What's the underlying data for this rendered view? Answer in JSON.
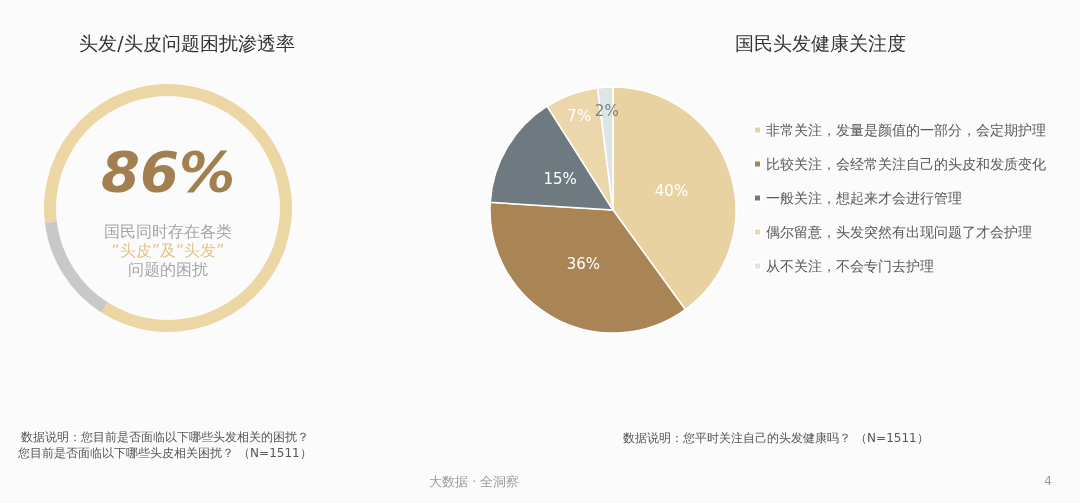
{
  "chart_data": [
    {
      "type": "donut",
      "title": "头发/头皮问题困扰渗透率",
      "categories": [
        null,
        null
      ],
      "values": [
        86,
        14
      ],
      "colors": [
        "#ecd6a3",
        "#c8c8c8"
      ],
      "legend": false,
      "annotations": [
        "86%",
        "国民同时存在各类\n“头皮”及“头发”\n问题的困扰",
        "数据说明：您目前是否面临以下哪些头发相关的困扰？",
        "您目前是否面临以下哪些头皮相关困扰？ （N=1511）"
      ]
    },
    {
      "type": "pie",
      "title": "国民头发健康关注度",
      "categories": [
        "非常关注，发量是颜值的一部分，会定期护理",
        "比较关注，会经常关注自己的头皮和发质变化",
        "一般关注，想起来才会进行管理",
        "偶尔留意，头发突然有出现问题了才会护理",
        "从不关注，不会专门去护理"
      ],
      "values": [
        40,
        36,
        15,
        7,
        2
      ],
      "colors": [
        "#e8d2a2",
        "#a98555",
        "#6f7a80",
        "#ebd7ab",
        "#dde5e5"
      ],
      "value_labels": [
        "40%",
        "36%",
        "15%",
        "7%",
        "2%"
      ],
      "legend": "right",
      "annotations": [
        "数据说明：您平时关注自己的头发健康吗？ （N=1511）",
        "大数据 · 全洞察",
        "4"
      ]
    }
  ]
}
